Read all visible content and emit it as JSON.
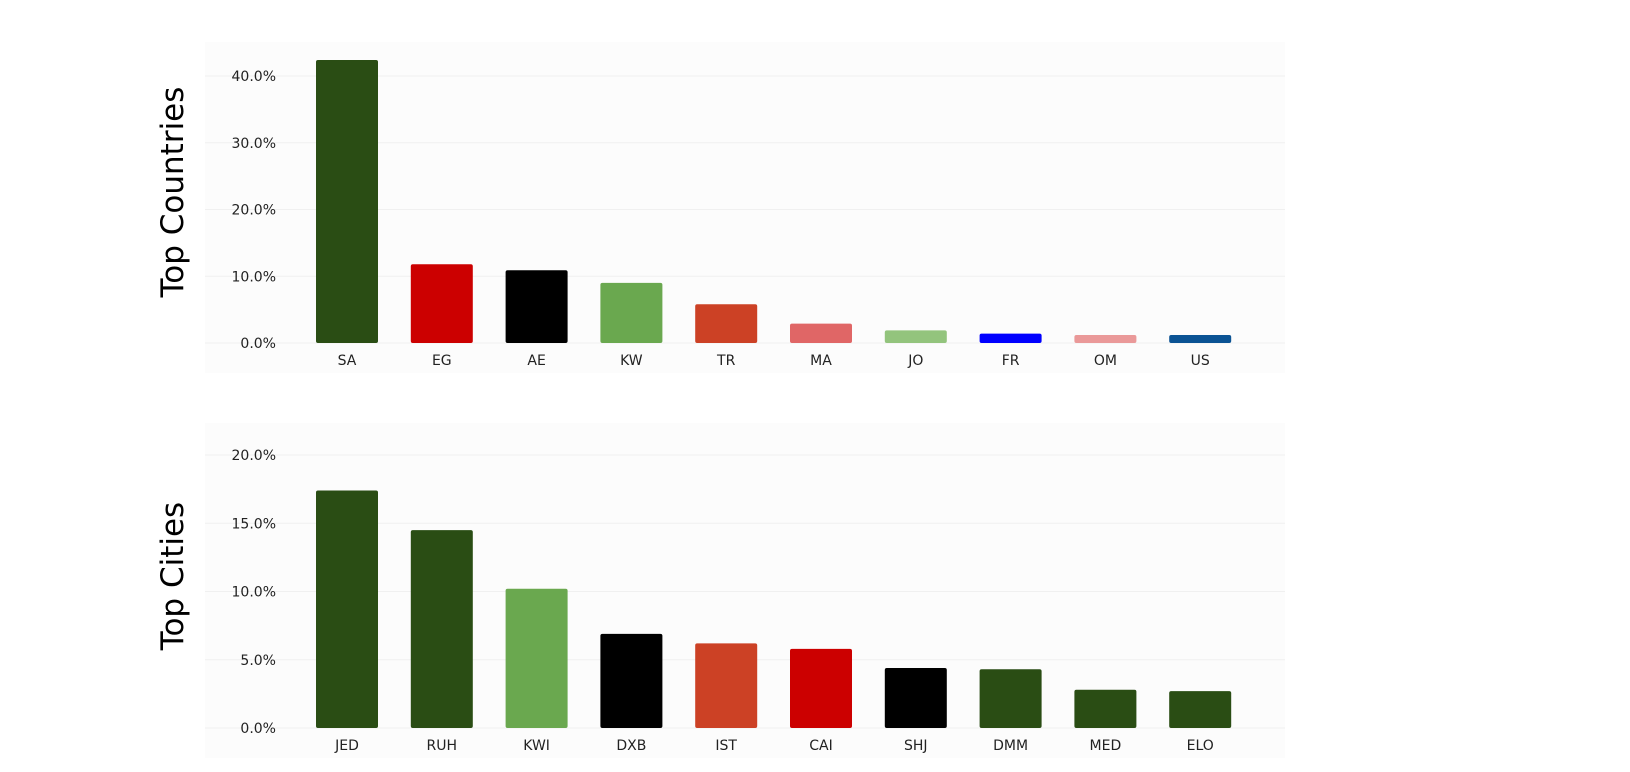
{
  "colors": {
    "dark_green": "#2a4d14",
    "red": "#cc0000",
    "black": "#000000",
    "mid_green": "#6aa84f",
    "orange_red": "#cc4125",
    "salmon": "#e06666",
    "light_green": "#93c47d",
    "blue": "#0000ff",
    "pink": "#ea9999",
    "steel_blue": "#0b5394"
  },
  "chart_data": [
    {
      "type": "bar",
      "title": "Top Countries",
      "categories": [
        "SA",
        "EG",
        "AE",
        "KW",
        "TR",
        "MA",
        "JO",
        "FR",
        "OM",
        "US"
      ],
      "values": [
        42.4,
        11.8,
        10.9,
        9.0,
        5.8,
        2.9,
        1.9,
        1.4,
        1.2,
        1.2
      ],
      "bar_colors": [
        "#2a4d14",
        "#cc0000",
        "#000000",
        "#6aa84f",
        "#cc4125",
        "#e06666",
        "#93c47d",
        "#0000ff",
        "#ea9999",
        "#0b5394"
      ],
      "ylim": [
        0,
        40
      ],
      "ytick_values": [
        0,
        10,
        20,
        30,
        40
      ],
      "ytick_labels": [
        "0.0%",
        "10.0%",
        "20.0%",
        "30.0%",
        "40.0%"
      ],
      "xlabel": "",
      "ylabel": "",
      "grid": true
    },
    {
      "type": "bar",
      "title": "Top Cities",
      "categories": [
        "JED",
        "RUH",
        "KWI",
        "DXB",
        "IST",
        "CAI",
        "SHJ",
        "DMM",
        "MED",
        "ELO"
      ],
      "values": [
        17.4,
        14.5,
        10.2,
        6.9,
        6.2,
        5.8,
        4.4,
        4.3,
        2.8,
        2.7
      ],
      "bar_colors": [
        "#2a4d14",
        "#2a4d14",
        "#6aa84f",
        "#000000",
        "#cc4125",
        "#cc0000",
        "#000000",
        "#2a4d14",
        "#2a4d14",
        "#2a4d14"
      ],
      "ylim": [
        0,
        20
      ],
      "ytick_values": [
        0,
        5,
        10,
        15,
        20
      ],
      "ytick_labels": [
        "0.0%",
        "5.0%",
        "10.0%",
        "15.0%",
        "20.0%"
      ],
      "xlabel": "",
      "ylabel": "",
      "grid": true
    }
  ]
}
